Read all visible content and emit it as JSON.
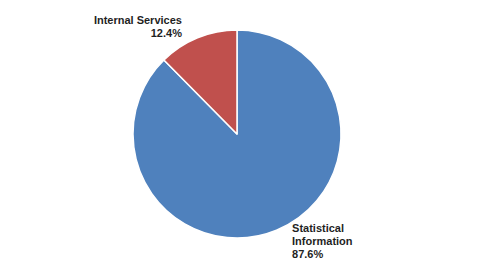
{
  "chart_data": {
    "type": "pie",
    "categories": [
      "Statistical Information",
      "Internal Services"
    ],
    "values": [
      87.6,
      12.4
    ],
    "value_labels": [
      "87.6%",
      "12.4%"
    ],
    "colors": [
      "#4f81bd",
      "#c0504d"
    ],
    "data_labels": true
  }
}
